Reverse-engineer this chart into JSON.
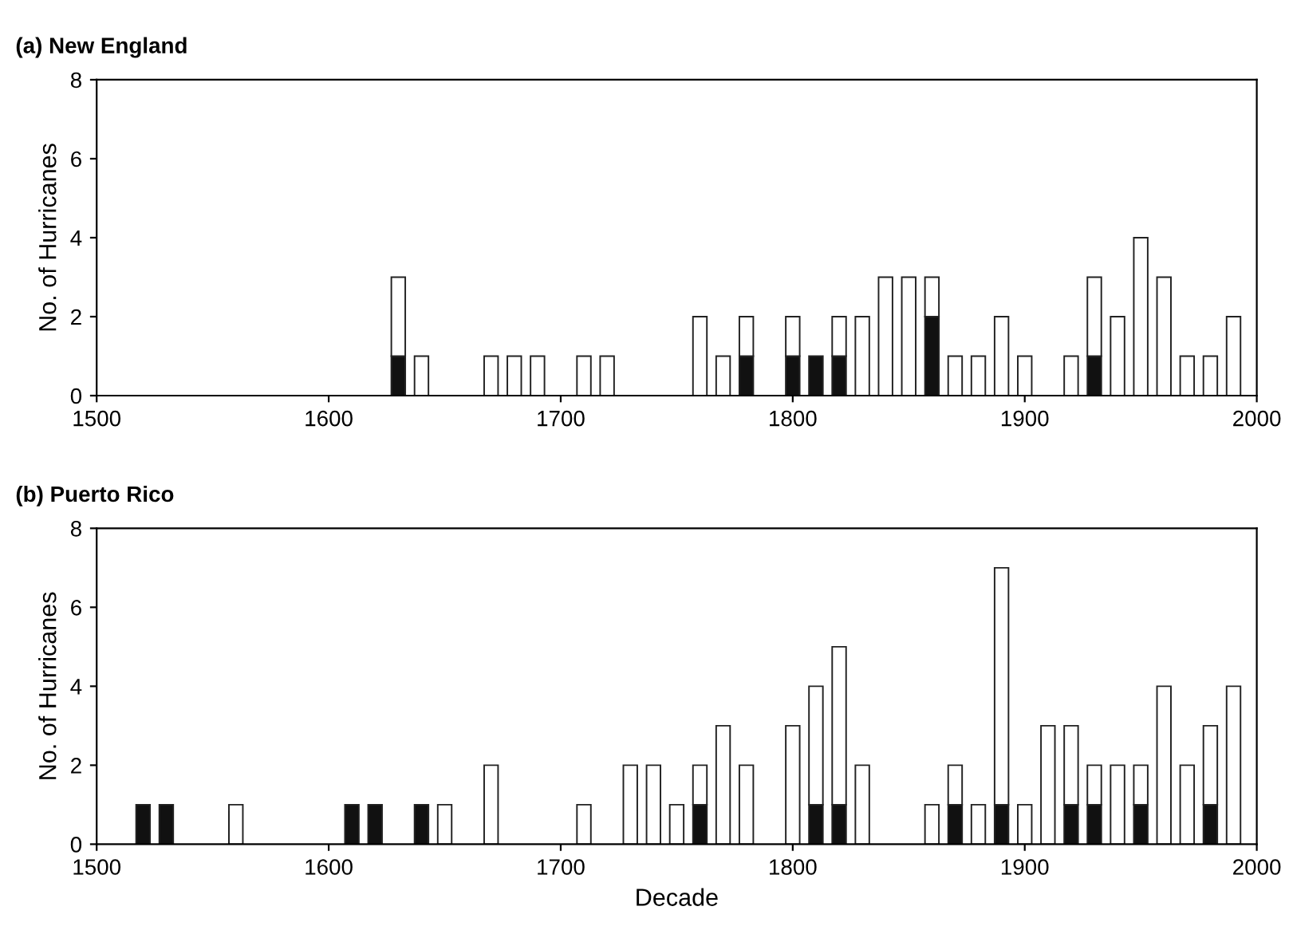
{
  "chart_data": [
    {
      "type": "bar",
      "title": "(a) New England",
      "ylabel": "No. of Hurricanes",
      "stacked": true,
      "x": [
        1630,
        1640,
        1670,
        1680,
        1690,
        1710,
        1720,
        1760,
        1770,
        1780,
        1800,
        1810,
        1820,
        1830,
        1840,
        1850,
        1860,
        1870,
        1880,
        1890,
        1900,
        1920,
        1930,
        1940,
        1950,
        1960,
        1970,
        1980,
        1990
      ],
      "series": [
        {
          "color": "#111111",
          "values": [
            1,
            null,
            null,
            null,
            null,
            null,
            null,
            null,
            null,
            1,
            1,
            1,
            1,
            null,
            null,
            null,
            2,
            null,
            null,
            null,
            null,
            null,
            1,
            null,
            null,
            null,
            null,
            null,
            null
          ]
        },
        {
          "color": "#ffffff",
          "values": [
            2,
            1,
            1,
            1,
            1,
            1,
            1,
            2,
            1,
            1,
            1,
            null,
            1,
            2,
            3,
            3,
            1,
            1,
            1,
            2,
            1,
            1,
            2,
            2,
            4,
            3,
            1,
            1,
            2
          ]
        }
      ],
      "xlim": [
        1500,
        2000
      ],
      "xticks": [
        1500,
        1600,
        1700,
        1800,
        1900,
        2000
      ],
      "ylim": [
        0,
        8
      ],
      "yticks": [
        0,
        2,
        4,
        6,
        8
      ],
      "grid": false
    },
    {
      "type": "bar",
      "title": "(b) Puerto Rico",
      "ylabel": "No. of Hurricanes",
      "xlabel": "Decade",
      "stacked": true,
      "x": [
        1520,
        1530,
        1560,
        1610,
        1620,
        1640,
        1650,
        1670,
        1710,
        1730,
        1740,
        1750,
        1760,
        1770,
        1780,
        1800,
        1810,
        1820,
        1830,
        1860,
        1870,
        1880,
        1890,
        1900,
        1910,
        1920,
        1930,
        1940,
        1950,
        1960,
        1970,
        1980,
        1990
      ],
      "series": [
        {
          "color": "#111111",
          "values": [
            1,
            1,
            null,
            1,
            1,
            1,
            null,
            null,
            null,
            null,
            null,
            null,
            1,
            null,
            null,
            null,
            1,
            1,
            null,
            null,
            1,
            null,
            1,
            null,
            null,
            1,
            1,
            null,
            1,
            null,
            null,
            1,
            null
          ]
        },
        {
          "color": "#ffffff",
          "values": [
            null,
            null,
            1,
            null,
            null,
            null,
            1,
            2,
            1,
            2,
            2,
            1,
            1,
            3,
            2,
            3,
            3,
            4,
            2,
            1,
            1,
            1,
            6,
            1,
            3,
            2,
            1,
            2,
            1,
            4,
            2,
            2,
            4
          ]
        }
      ],
      "xlim": [
        1500,
        2000
      ],
      "xticks": [
        1500,
        1600,
        1700,
        1800,
        1900,
        2000
      ],
      "ylim": [
        0,
        8
      ],
      "yticks": [
        0,
        2,
        4,
        6,
        8
      ],
      "grid": false
    }
  ]
}
